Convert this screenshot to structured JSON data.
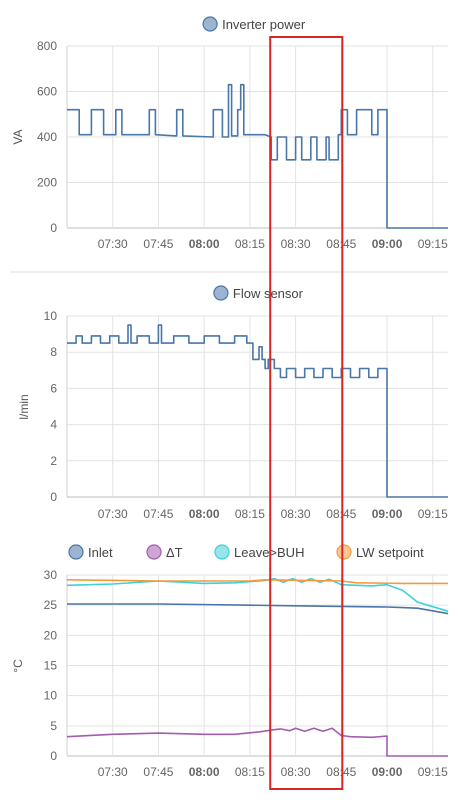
{
  "chart_data": [
    {
      "type": "line",
      "title": "",
      "ylabel": "VA",
      "ylim": [
        0,
        800
      ],
      "yticks": [
        0,
        200,
        400,
        600,
        800
      ],
      "xlim": [
        "07:15",
        "09:20"
      ],
      "xticks": [
        "07:30",
        "07:45",
        "08:00",
        "08:15",
        "08:30",
        "08:45",
        "09:00",
        "09:15"
      ],
      "bold_xticks": [
        "08:00",
        "09:00"
      ],
      "grid": true,
      "legend": [
        {
          "name": "Inverter power",
          "color": "#4a76a8"
        }
      ],
      "series": [
        {
          "name": "Inverter power",
          "color": "#4a76a8",
          "points": [
            [
              "07:15",
              520
            ],
            [
              "07:19",
              520
            ],
            [
              "07:19",
              410
            ],
            [
              "07:23",
              410
            ],
            [
              "07:23",
              520
            ],
            [
              "07:27",
              520
            ],
            [
              "07:27",
              410
            ],
            [
              "07:31",
              410
            ],
            [
              "07:31",
              520
            ],
            [
              "07:33",
              520
            ],
            [
              "07:33",
              410
            ],
            [
              "07:42",
              410
            ],
            [
              "07:42",
              520
            ],
            [
              "07:44",
              520
            ],
            [
              "07:44",
              410
            ],
            [
              "07:51",
              405
            ],
            [
              "07:51",
              520
            ],
            [
              "07:53",
              520
            ],
            [
              "07:53",
              405
            ],
            [
              "08:03",
              400
            ],
            [
              "08:03",
              520
            ],
            [
              "08:06",
              520
            ],
            [
              "08:06",
              400
            ],
            [
              "08:08",
              400
            ],
            [
              "08:08",
              630
            ],
            [
              "08:09",
              630
            ],
            [
              "08:09",
              405
            ],
            [
              "08:11",
              405
            ],
            [
              "08:11",
              520
            ],
            [
              "08:12",
              520
            ],
            [
              "08:12",
              630
            ],
            [
              "08:13",
              630
            ],
            [
              "08:13",
              410
            ],
            [
              "08:20",
              410
            ],
            [
              "08:20",
              410
            ],
            [
              "08:22",
              400
            ],
            [
              "08:22",
              300
            ],
            [
              "08:24",
              300
            ],
            [
              "08:24",
              400
            ],
            [
              "08:27",
              400
            ],
            [
              "08:27",
              300
            ],
            [
              "08:30",
              300
            ],
            [
              "08:30",
              400
            ],
            [
              "08:32",
              400
            ],
            [
              "08:32",
              300
            ],
            [
              "08:35",
              300
            ],
            [
              "08:35",
              400
            ],
            [
              "08:37",
              400
            ],
            [
              "08:37",
              300
            ],
            [
              "08:40",
              300
            ],
            [
              "08:40",
              400
            ],
            [
              "08:41",
              400
            ],
            [
              "08:41",
              300
            ],
            [
              "08:44",
              300
            ],
            [
              "08:44",
              410
            ],
            [
              "08:45",
              410
            ],
            [
              "08:45",
              520
            ],
            [
              "08:47",
              520
            ],
            [
              "08:47",
              410
            ],
            [
              "08:50",
              410
            ],
            [
              "08:50",
              520
            ],
            [
              "08:55",
              520
            ],
            [
              "08:55",
              410
            ],
            [
              "08:57",
              410
            ],
            [
              "08:57",
              520
            ],
            [
              "09:00",
              520
            ],
            [
              "09:00",
              0
            ],
            [
              "09:20",
              0
            ]
          ]
        }
      ]
    },
    {
      "type": "line",
      "title": "",
      "ylabel": "l/min",
      "ylim": [
        0,
        10
      ],
      "yticks": [
        0,
        2,
        4,
        6,
        8,
        10
      ],
      "xlim": [
        "07:15",
        "09:20"
      ],
      "xticks": [
        "07:30",
        "07:45",
        "08:00",
        "08:15",
        "08:30",
        "08:45",
        "09:00",
        "09:15"
      ],
      "bold_xticks": [
        "08:00",
        "09:00"
      ],
      "grid": true,
      "legend": [
        {
          "name": "Flow sensor",
          "color": "#4a76a8"
        }
      ],
      "series": [
        {
          "name": "Flow sensor",
          "color": "#4a76a8",
          "points": [
            [
              "07:15",
              8.5
            ],
            [
              "07:18",
              8.5
            ],
            [
              "07:18",
              8.9
            ],
            [
              "07:20",
              8.9
            ],
            [
              "07:20",
              8.5
            ],
            [
              "07:23",
              8.5
            ],
            [
              "07:23",
              8.9
            ],
            [
              "07:26",
              8.9
            ],
            [
              "07:26",
              8.5
            ],
            [
              "07:29",
              8.5
            ],
            [
              "07:29",
              8.9
            ],
            [
              "07:32",
              8.9
            ],
            [
              "07:32",
              8.5
            ],
            [
              "07:35",
              8.5
            ],
            [
              "07:35",
              9.5
            ],
            [
              "07:36",
              9.5
            ],
            [
              "07:36",
              8.5
            ],
            [
              "07:38",
              8.5
            ],
            [
              "07:38",
              8.9
            ],
            [
              "07:42",
              8.9
            ],
            [
              "07:42",
              8.5
            ],
            [
              "07:45",
              8.5
            ],
            [
              "07:45",
              9.5
            ],
            [
              "07:46",
              9.5
            ],
            [
              "07:46",
              8.5
            ],
            [
              "07:50",
              8.5
            ],
            [
              "07:50",
              8.9
            ],
            [
              "07:55",
              8.9
            ],
            [
              "07:55",
              8.5
            ],
            [
              "08:00",
              8.5
            ],
            [
              "08:00",
              8.9
            ],
            [
              "08:05",
              8.9
            ],
            [
              "08:05",
              8.5
            ],
            [
              "08:10",
              8.5
            ],
            [
              "08:10",
              8.9
            ],
            [
              "08:14",
              8.9
            ],
            [
              "08:14",
              8.5
            ],
            [
              "08:16",
              8.5
            ],
            [
              "08:16",
              7.6
            ],
            [
              "08:18",
              7.6
            ],
            [
              "08:18",
              8.3
            ],
            [
              "08:19",
              8.3
            ],
            [
              "08:19",
              7.6
            ],
            [
              "08:20",
              7.6
            ],
            [
              "08:20",
              7.1
            ],
            [
              "08:21",
              7.1
            ],
            [
              "08:21",
              7.6
            ],
            [
              "08:23",
              7.6
            ],
            [
              "08:23",
              7.1
            ],
            [
              "08:25",
              7.1
            ],
            [
              "08:25",
              6.6
            ],
            [
              "08:27",
              6.6
            ],
            [
              "08:27",
              7.1
            ],
            [
              "08:30",
              7.1
            ],
            [
              "08:30",
              6.6
            ],
            [
              "08:33",
              6.6
            ],
            [
              "08:33",
              7.1
            ],
            [
              "08:36",
              7.1
            ],
            [
              "08:36",
              6.6
            ],
            [
              "08:39",
              6.6
            ],
            [
              "08:39",
              7.1
            ],
            [
              "08:42",
              7.1
            ],
            [
              "08:42",
              6.6
            ],
            [
              "08:45",
              6.6
            ],
            [
              "08:45",
              7.1
            ],
            [
              "08:48",
              7.1
            ],
            [
              "08:48",
              6.6
            ],
            [
              "08:51",
              6.6
            ],
            [
              "08:51",
              7.1
            ],
            [
              "08:54",
              7.1
            ],
            [
              "08:54",
              6.6
            ],
            [
              "08:57",
              6.6
            ],
            [
              "08:57",
              7.1
            ],
            [
              "09:00",
              7.1
            ],
            [
              "09:00",
              0
            ],
            [
              "09:20",
              0
            ]
          ]
        }
      ]
    },
    {
      "type": "line",
      "title": "",
      "ylabel": "°C",
      "ylim": [
        0,
        30
      ],
      "yticks": [
        0,
        5,
        10,
        15,
        20,
        25,
        30
      ],
      "xlim": [
        "07:15",
        "09:20"
      ],
      "xticks": [
        "07:30",
        "07:45",
        "08:00",
        "08:15",
        "08:30",
        "08:45",
        "09:00",
        "09:15"
      ],
      "bold_xticks": [
        "08:00",
        "09:00"
      ],
      "grid": true,
      "legend": [
        {
          "name": "Inlet",
          "color": "#4a76a8"
        },
        {
          "name": "ΔT",
          "color": "#a55cb0"
        },
        {
          "name": "Leave>BUH",
          "color": "#3fd0d6"
        },
        {
          "name": "LW setpoint",
          "color": "#f39a3c"
        }
      ],
      "series": [
        {
          "name": "Inlet",
          "color": "#4a76a8",
          "points": [
            [
              "07:15",
              25.2
            ],
            [
              "07:45",
              25.2
            ],
            [
              "08:15",
              25.0
            ],
            [
              "08:30",
              24.9
            ],
            [
              "08:45",
              24.8
            ],
            [
              "09:00",
              24.7
            ],
            [
              "09:05",
              24.6
            ],
            [
              "09:10",
              24.5
            ],
            [
              "09:20",
              23.6
            ]
          ]
        },
        {
          "name": "ΔT",
          "color": "#a55cb0",
          "points": [
            [
              "07:15",
              3.2
            ],
            [
              "07:30",
              3.6
            ],
            [
              "07:45",
              3.8
            ],
            [
              "08:00",
              3.6
            ],
            [
              "08:10",
              3.6
            ],
            [
              "08:18",
              4.0
            ],
            [
              "08:22",
              4.3
            ],
            [
              "08:25",
              4.5
            ],
            [
              "08:28",
              4.2
            ],
            [
              "08:30",
              4.6
            ],
            [
              "08:33",
              4.1
            ],
            [
              "08:36",
              4.6
            ],
            [
              "08:39",
              4.1
            ],
            [
              "08:42",
              4.6
            ],
            [
              "08:45",
              3.4
            ],
            [
              "08:48",
              3.2
            ],
            [
              "08:55",
              3.1
            ],
            [
              "09:00",
              3.3
            ],
            [
              "09:00",
              0
            ],
            [
              "09:20",
              0
            ]
          ]
        },
        {
          "name": "Leave>BUH",
          "color": "#3fd0d6",
          "points": [
            [
              "07:15",
              28.3
            ],
            [
              "07:30",
              28.5
            ],
            [
              "07:45",
              29.0
            ],
            [
              "08:00",
              28.6
            ],
            [
              "08:10",
              28.7
            ],
            [
              "08:20",
              29.1
            ],
            [
              "08:23",
              29.4
            ],
            [
              "08:26",
              28.8
            ],
            [
              "08:29",
              29.4
            ],
            [
              "08:32",
              28.8
            ],
            [
              "08:35",
              29.4
            ],
            [
              "08:38",
              28.8
            ],
            [
              "08:41",
              29.3
            ],
            [
              "08:45",
              28.4
            ],
            [
              "08:55",
              28.2
            ],
            [
              "09:00",
              28.4
            ],
            [
              "09:05",
              27.5
            ],
            [
              "09:10",
              25.5
            ],
            [
              "09:20",
              24.0
            ]
          ]
        },
        {
          "name": "LW setpoint",
          "color": "#f39a3c",
          "points": [
            [
              "07:15",
              29.2
            ],
            [
              "07:45",
              29.0
            ],
            [
              "08:15",
              29.0
            ],
            [
              "08:20",
              29.2
            ],
            [
              "08:45",
              29.0
            ],
            [
              "08:50",
              28.7
            ],
            [
              "09:05",
              28.6
            ],
            [
              "09:20",
              28.6
            ]
          ]
        }
      ]
    }
  ],
  "highlight": {
    "label": "",
    "color": "#d62626",
    "x_from": "08:22",
    "x_to": "08:45"
  }
}
